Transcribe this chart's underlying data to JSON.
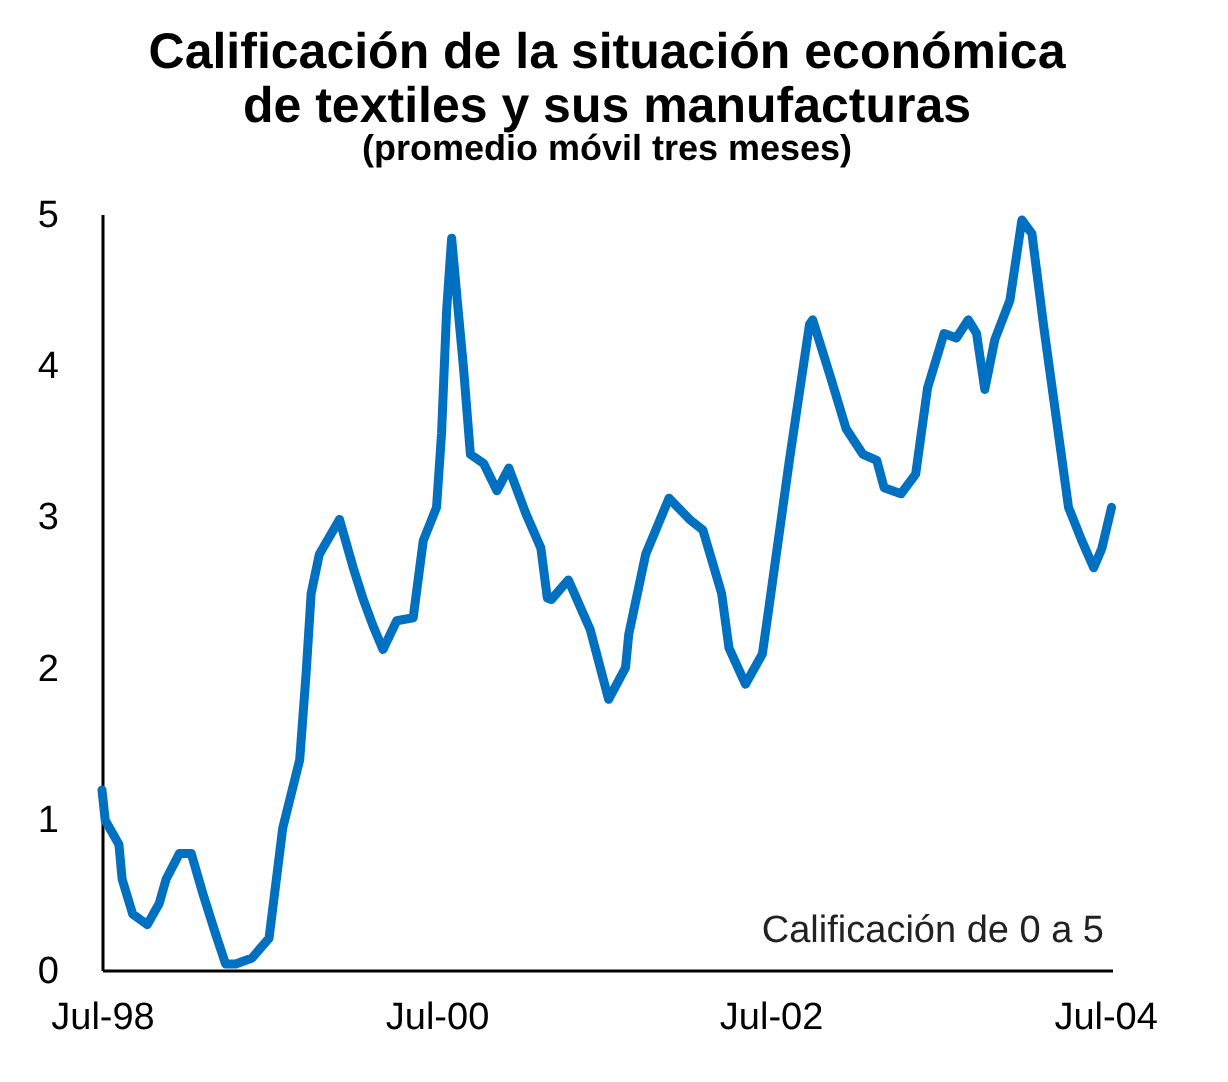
{
  "chart_data": {
    "type": "line",
    "title": [
      "Calificación de la situación económica",
      "de textiles y sus manufacturas"
    ],
    "subtitle": "(promedio móvil tres meses)",
    "annotations": [
      "Calificación de 0 a 5"
    ],
    "x": [
      "1998-07-01",
      "1998-07-08",
      "1998-08-07",
      "1998-08-14",
      "1998-09-06",
      "1998-10-08",
      "1998-11-03",
      "1998-11-18",
      "1998-12-17",
      "1999-01-12",
      "1999-02-07",
      "1999-03-06",
      "1999-03-28",
      "1999-04-19",
      "1999-05-25",
      "1999-07-01",
      "1999-07-31",
      "1999-09-06",
      "1999-09-20",
      "1999-10-01",
      "1999-10-19",
      "1999-12-02",
      "2000-01-01",
      "2000-01-23",
      "2000-02-14",
      "2000-03-06",
      "2000-04-05",
      "2000-05-11",
      "2000-06-02",
      "2000-07-01",
      "2000-07-12",
      "2000-07-23",
      "2000-08-03",
      "2000-08-18",
      "2000-08-29",
      "2000-09-13",
      "2000-10-12",
      "2000-11-10",
      "2000-12-06",
      "2001-01-12",
      "2001-02-14",
      "2001-02-28",
      "2001-03-09",
      "2001-04-15",
      "2001-06-02",
      "2001-07-12",
      "2001-08-18",
      "2001-08-25",
      "2001-10-01",
      "2001-11-21",
      "2002-01-05",
      "2002-02-03",
      "2002-03-16",
      "2002-04-01",
      "2002-05-07",
      "2002-06-13",
      "2002-06-27",
      "2002-08-11",
      "2002-09-24",
      "2002-10-01",
      "2002-11-07",
      "2002-12-13",
      "2003-01-19",
      "2003-02-18",
      "2003-03-06",
      "2003-04-12",
      "2003-05-14",
      "2003-06-09",
      "2003-07-15",
      "2003-08-11",
      "2003-09-06",
      "2003-09-24",
      "2003-10-12",
      "2003-11-03",
      "2003-12-06",
      "2004-01-01",
      "2004-01-23",
      "2004-02-18",
      "2004-04-12",
      "2004-05-11",
      "2004-06-06",
      "2004-06-24",
      "2004-07-15"
    ],
    "series": [
      {
        "color": "#0070c0",
        "values": [
          1.19,
          0.99,
          0.83,
          0.6,
          0.37,
          0.3,
          0.44,
          0.6,
          0.77,
          0.77,
          0.5,
          0.24,
          0.04,
          0.04,
          0.08,
          0.21,
          0.94,
          1.39,
          1.96,
          2.49,
          2.75,
          2.98,
          2.66,
          2.45,
          2.27,
          2.12,
          2.31,
          2.33,
          2.84,
          3.06,
          3.55,
          4.36,
          4.84,
          4.34,
          3.98,
          3.41,
          3.35,
          3.17,
          3.32,
          3.02,
          2.79,
          2.46,
          2.45,
          2.58,
          2.25,
          1.79,
          2.0,
          2.22,
          2.75,
          3.12,
          2.98,
          2.91,
          2.49,
          2.13,
          1.89,
          2.09,
          2.39,
          3.37,
          4.27,
          4.3,
          3.94,
          3.58,
          3.41,
          3.37,
          3.19,
          3.15,
          3.28,
          3.85,
          4.21,
          4.18,
          4.3,
          4.21,
          3.84,
          4.17,
          4.43,
          4.96,
          4.87,
          4.25,
          3.06,
          2.84,
          2.66,
          2.79,
          3.06
        ]
      }
    ],
    "xlim": [
      "1998-07-01",
      "2004-07-16"
    ],
    "xticks": [
      {
        "value": "1998-07",
        "label": "Jul-98"
      },
      {
        "value": "2000-07",
        "label": "Jul-00"
      },
      {
        "value": "2002-07",
        "label": "Jul-02"
      },
      {
        "value": "2004-07",
        "label": "Jul-04"
      }
    ],
    "ylim": [
      0,
      5
    ],
    "yticks": [
      0,
      1,
      2,
      3,
      4,
      5
    ],
    "grid": false,
    "line_style": "solid",
    "marker": "none"
  }
}
